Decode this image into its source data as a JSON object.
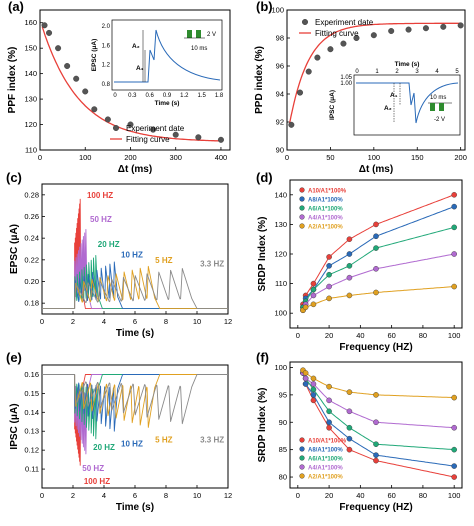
{
  "chart_data": [
    {
      "panel": "(a)",
      "type": "scatter",
      "xlabel": "Δt (ms)",
      "ylabel": "PPF index (%)",
      "xlim": [
        0,
        420
      ],
      "ylim": [
        110,
        165
      ],
      "xticks": [
        "0",
        "100",
        "200",
        "300",
        "400"
      ],
      "yticks": [
        "110",
        "120",
        "130",
        "140",
        "150",
        "160"
      ],
      "legend": [
        "Experiment date",
        "Fitting curve"
      ],
      "series": [
        {
          "name": "Experiment date",
          "x": [
            10,
            20,
            40,
            60,
            80,
            100,
            120,
            150,
            200,
            250,
            300,
            350,
            400
          ],
          "values": [
            159,
            156,
            150,
            143,
            138,
            133,
            126,
            122,
            120,
            118,
            116,
            115,
            114
          ]
        },
        {
          "name": "Fitting curve",
          "model": "exp-decay",
          "y0": 113.2,
          "a": 48,
          "tau": 82
        }
      ],
      "inset": {
        "xlabel": "Time (s)",
        "ylabel": "EPSC (μA)",
        "xticks": [
          "0",
          "0.3",
          "0.6",
          "0.9",
          "1.2",
          "1.5",
          "1.8"
        ],
        "yticks": [
          "0.8",
          "1.2",
          "1.6",
          "2.0"
        ],
        "labels": [
          "A₁",
          "A₂"
        ],
        "pulse_voltage": "2 V",
        "pulse_interval": "10 ms"
      }
    },
    {
      "panel": "(b)",
      "type": "scatter",
      "xlabel": "Δt (ms)",
      "ylabel": "PPD index (%)",
      "xlim": [
        0,
        205
      ],
      "ylim": [
        90,
        100
      ],
      "xticks": [
        "0",
        "50",
        "100",
        "150",
        "200"
      ],
      "yticks": [
        "90",
        "92",
        "94",
        "96",
        "98",
        "100"
      ],
      "legend": [
        "Experiment date",
        "Fitting curve"
      ],
      "series": [
        {
          "name": "Experiment date",
          "x": [
            5,
            15,
            25,
            35,
            50,
            65,
            80,
            100,
            120,
            140,
            160,
            180,
            200
          ],
          "values": [
            91.8,
            94.1,
            95.6,
            96.6,
            97.2,
            97.6,
            98.0,
            98.2,
            98.5,
            98.6,
            98.7,
            98.8,
            98.9
          ]
        },
        {
          "name": "Fitting curve",
          "model": "exp-rise",
          "y0": 99.05,
          "a": 8.2,
          "tau": 22
        }
      ],
      "inset": {
        "xlabel": "Time (s)",
        "ylabel": "IPSC (μA)",
        "xticks": [
          "0",
          "1",
          "2",
          "3",
          "4",
          "5"
        ],
        "yticks": [
          "1.00",
          "1.05"
        ],
        "labels": [
          "A₁",
          "A₂"
        ],
        "pulse_voltage": "-2 V",
        "pulse_interval": "10 ms"
      }
    },
    {
      "panel": "(c)",
      "type": "line",
      "xlabel": "Time (s)",
      "ylabel": "EPSC (μA)",
      "xlim": [
        0,
        12
      ],
      "ylim": [
        0.17,
        0.29
      ],
      "xticks": [
        "0",
        "2",
        "4",
        "6",
        "8",
        "10",
        "12"
      ],
      "yticks": [
        "0.18",
        "0.20",
        "0.22",
        "0.24",
        "0.26",
        "0.28"
      ],
      "baseline": 0.175,
      "series": [
        {
          "name": "100 HZ",
          "color": "#e8403a",
          "freq": 100,
          "peak": 0.276,
          "step": 0.04
        },
        {
          "name": "50 HZ",
          "color": "#b06ad0",
          "freq": 50,
          "peak": 0.248,
          "step": 0.08
        },
        {
          "name": "20 HZ",
          "color": "#20a878",
          "freq": 20,
          "peak": 0.224,
          "step": 0.15
        },
        {
          "name": "10 HZ",
          "color": "#2a6ab8",
          "freq": 10,
          "peak": 0.218,
          "step": 0.28
        },
        {
          "name": "5 HZ",
          "color": "#e0a020",
          "freq": 5,
          "peak": 0.214,
          "step": 0.52
        },
        {
          "name": "3.3 HZ",
          "color": "#8a8a8a",
          "freq": 3.3,
          "peak": 0.212,
          "step": 0.76
        }
      ]
    },
    {
      "panel": "(d)",
      "type": "scatter",
      "xlabel": "Frequency (HZ)",
      "ylabel": "SRDP Index (%)",
      "xlim": [
        -5,
        105
      ],
      "ylim": [
        95,
        145
      ],
      "xticks": [
        "0",
        "20",
        "40",
        "60",
        "80",
        "100"
      ],
      "yticks": [
        "100",
        "110",
        "120",
        "130",
        "140"
      ],
      "x": [
        3.3,
        5,
        10,
        20,
        33,
        50,
        100
      ],
      "series": [
        {
          "name": "A10/A1*100%",
          "color": "#e8403a",
          "values": [
            103,
            106,
            110,
            119,
            125,
            130,
            140
          ]
        },
        {
          "name": "A8/A1*100%",
          "color": "#2a6ab8",
          "values": [
            102,
            105,
            108,
            116,
            120,
            126,
            136
          ]
        },
        {
          "name": "A6/A1*100%",
          "color": "#20a878",
          "values": [
            102,
            104,
            108,
            113,
            116,
            122,
            129
          ]
        },
        {
          "name": "A4/A1*100%",
          "color": "#b06ad0",
          "values": [
            101,
            103,
            106,
            109,
            112,
            115,
            120
          ]
        },
        {
          "name": "A2/A1*100%",
          "color": "#e0a020",
          "values": [
            101,
            102,
            103,
            105,
            106,
            107,
            109
          ]
        }
      ]
    },
    {
      "panel": "(e)",
      "type": "line",
      "xlabel": "Time (s)",
      "ylabel": "IPSC (μA)",
      "xlim": [
        0,
        12
      ],
      "ylim": [
        0.1,
        0.165
      ],
      "xticks": [
        "0",
        "2",
        "4",
        "6",
        "8",
        "10",
        "12"
      ],
      "yticks": [
        "0.11",
        "0.12",
        "0.13",
        "0.14",
        "0.15",
        "0.16"
      ],
      "baseline": 0.16,
      "series": [
        {
          "name": "100 HZ",
          "color": "#e8403a",
          "freq": 100,
          "peak": 0.112,
          "step": 0.04
        },
        {
          "name": "50 HZ",
          "color": "#b06ad0",
          "freq": 50,
          "peak": 0.118,
          "step": 0.08
        },
        {
          "name": "20 HZ",
          "color": "#20a878",
          "freq": 20,
          "peak": 0.126,
          "step": 0.15
        },
        {
          "name": "10 HZ",
          "color": "#2a6ab8",
          "freq": 10,
          "peak": 0.13,
          "step": 0.28
        },
        {
          "name": "5 HZ",
          "color": "#e0a020",
          "freq": 5,
          "peak": 0.132,
          "step": 0.52
        },
        {
          "name": "3.3 HZ",
          "color": "#8a8a8a",
          "freq": 3.3,
          "peak": 0.134,
          "step": 0.76
        }
      ]
    },
    {
      "panel": "(f)",
      "type": "scatter",
      "xlabel": "Frequency (HZ)",
      "ylabel": "SRDP Index (%)",
      "xlim": [
        -5,
        105
      ],
      "ylim": [
        78,
        101
      ],
      "xticks": [
        "0",
        "20",
        "40",
        "60",
        "80",
        "100"
      ],
      "yticks": [
        "80",
        "85",
        "90",
        "95",
        "100"
      ],
      "x": [
        3.3,
        5,
        10,
        20,
        33,
        50,
        100
      ],
      "series": [
        {
          "name": "A10/A1*100%",
          "color": "#e8403a",
          "values": [
            99,
            97,
            94,
            89,
            85,
            83,
            80
          ]
        },
        {
          "name": "A8/A1*100%",
          "color": "#2a6ab8",
          "values": [
            99,
            97,
            95,
            90,
            87,
            84,
            82
          ]
        },
        {
          "name": "A6/A1*100%",
          "color": "#20a878",
          "values": [
            99,
            98,
            96,
            92,
            89,
            86,
            85
          ]
        },
        {
          "name": "A4/A1*100%",
          "color": "#b06ad0",
          "values": [
            99,
            98,
            97,
            94,
            92,
            90,
            89
          ]
        },
        {
          "name": "A2/A1*100%",
          "color": "#e0a020",
          "values": [
            99.5,
            99,
            98,
            96.5,
            95.5,
            95,
            94.5
          ]
        }
      ]
    }
  ]
}
